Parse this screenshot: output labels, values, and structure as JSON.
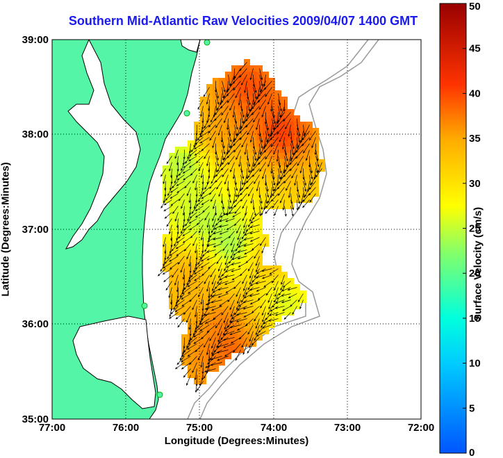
{
  "title": "Southern Mid-Atlantic Raw Velocities 2009/04/07 1400 GMT",
  "xlabel": "Longitude (Degrees:Minutes)",
  "ylabel": "Latitude (Degrees:Minutes)",
  "colorbar": {
    "label": "Surface Velocity (cm/s)",
    "ticks": [
      "50",
      "45",
      "40",
      "35",
      "30",
      "25",
      "20",
      "15",
      "10",
      "5",
      "0"
    ],
    "range": [
      0,
      50
    ],
    "colormap": "jet"
  },
  "x_ticks": [
    "77:00",
    "76:00",
    "75:00",
    "74:00",
    "73:00",
    "72:00"
  ],
  "y_ticks": [
    "39:00",
    "38:00",
    "37:00",
    "36:00",
    "35:00"
  ],
  "colors": {
    "land": "#55f5a8",
    "title": "#1a1aee",
    "coast": "#000000",
    "bathymetry": "#999999"
  }
}
